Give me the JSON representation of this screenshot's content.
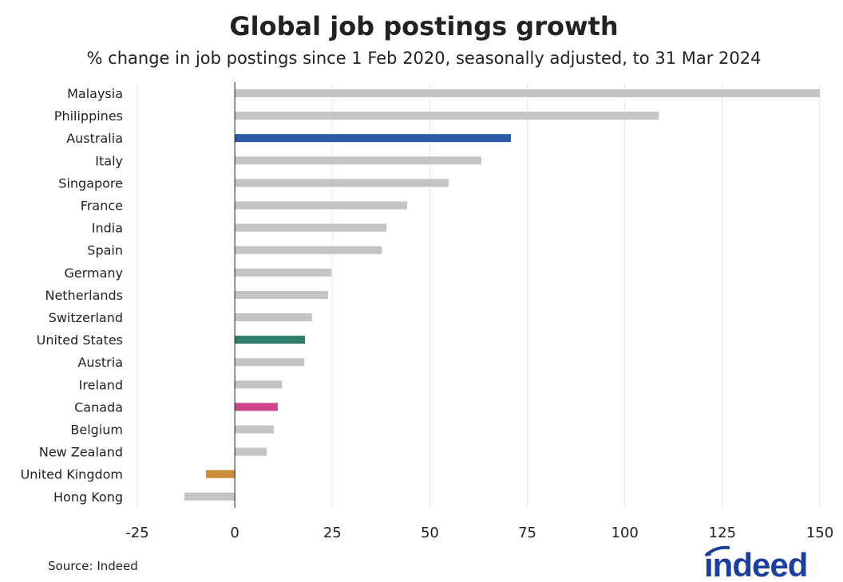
{
  "chart_data": {
    "type": "bar",
    "orientation": "horizontal",
    "title": "Global job postings growth",
    "subtitle": "% change in job postings since 1 Feb 2020, seasonally adjusted, to 31 Mar 2024",
    "categories": [
      "Malaysia",
      "Philippines",
      "Australia",
      "Italy",
      "Singapore",
      "France",
      "India",
      "Spain",
      "Germany",
      "Netherlands",
      "Switzerland",
      "United States",
      "Austria",
      "Ireland",
      "Canada",
      "Belgium",
      "New Zealand",
      "United Kingdom",
      "Hong Kong"
    ],
    "values": [
      150,
      108.7,
      70.8,
      63.2,
      54.8,
      44.2,
      38.9,
      37.7,
      24.8,
      23.9,
      19.8,
      18.0,
      17.8,
      12.1,
      11.0,
      10.0,
      8.2,
      -7.4,
      -12.9
    ],
    "highlight_colors": {
      "Australia": "#2a5caa",
      "United States": "#2e7d6b",
      "Canada": "#cc4488",
      "United Kingdom": "#c88c3a"
    },
    "default_color": "#c4c4c4",
    "xlim": [
      -25,
      150
    ],
    "xticks": [
      -25,
      0,
      25,
      50,
      75,
      100,
      125,
      150
    ],
    "grid": true,
    "xlabel": "",
    "ylabel": ""
  },
  "source": "Source: Indeed",
  "logo_text": "indeed",
  "logo_color": "#1a3fa0"
}
